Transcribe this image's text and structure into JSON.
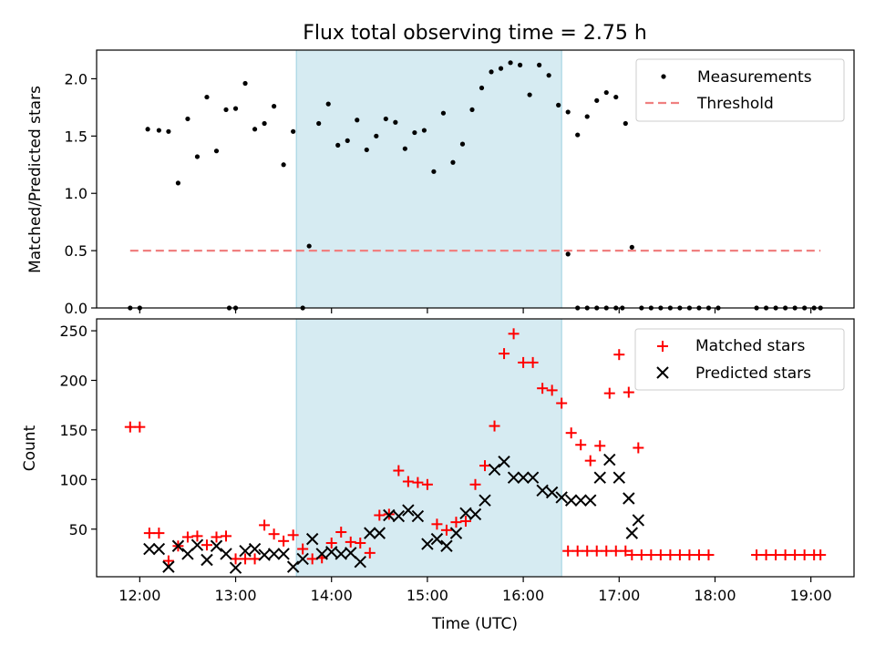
{
  "chart_data": [
    {
      "type": "scatter",
      "title": "Flux total observing time = 2.75 h",
      "xlabel": "",
      "ylabel": "Matched/Predicted stars",
      "xlim": [
        "11:33",
        "19:27"
      ],
      "ylim": [
        0,
        2.25
      ],
      "yticks": [
        "0.0",
        "0.5",
        "1.0",
        "1.5",
        "2.0"
      ],
      "grid": false,
      "legend_position": "top-right",
      "shaded_interval": {
        "start": "13:38",
        "end": "16:24",
        "color": "#add8e6"
      },
      "threshold": {
        "label": "Threshold",
        "value": 0.5,
        "x_start": "11:54",
        "x_end": "19:06",
        "color": "#f08080"
      },
      "series": [
        {
          "name": "Measurements",
          "marker": "dot",
          "color": "#000000",
          "points": [
            [
              "11:54",
              0
            ],
            [
              "12:00",
              0
            ],
            [
              "12:05",
              1.56
            ],
            [
              "12:12",
              1.55
            ],
            [
              "12:18",
              1.54
            ],
            [
              "12:24",
              1.09
            ],
            [
              "12:30",
              1.65
            ],
            [
              "12:36",
              1.32
            ],
            [
              "12:42",
              1.84
            ],
            [
              "12:48",
              1.37
            ],
            [
              "12:54",
              1.73
            ],
            [
              "13:00",
              1.74
            ],
            [
              "12:56",
              0
            ],
            [
              "13:00",
              0
            ],
            [
              "13:06",
              1.96
            ],
            [
              "13:12",
              1.56
            ],
            [
              "13:18",
              1.61
            ],
            [
              "13:24",
              1.76
            ],
            [
              "13:30",
              1.25
            ],
            [
              "13:36",
              1.54
            ],
            [
              "13:42",
              0
            ],
            [
              "13:46",
              0.54
            ],
            [
              "13:52",
              1.61
            ],
            [
              "13:58",
              1.78
            ],
            [
              "14:04",
              1.42
            ],
            [
              "14:10",
              1.46
            ],
            [
              "14:16",
              1.64
            ],
            [
              "14:22",
              1.38
            ],
            [
              "14:28",
              1.5
            ],
            [
              "14:34",
              1.65
            ],
            [
              "14:40",
              1.62
            ],
            [
              "14:46",
              1.39
            ],
            [
              "14:52",
              1.53
            ],
            [
              "14:58",
              1.55
            ],
            [
              "15:04",
              1.19
            ],
            [
              "15:10",
              1.7
            ],
            [
              "15:16",
              1.27
            ],
            [
              "15:22",
              1.43
            ],
            [
              "15:28",
              1.73
            ],
            [
              "15:34",
              1.92
            ],
            [
              "15:40",
              2.06
            ],
            [
              "15:46",
              2.09
            ],
            [
              "15:52",
              2.14
            ],
            [
              "15:58",
              2.12
            ],
            [
              "16:04",
              1.86
            ],
            [
              "16:10",
              2.12
            ],
            [
              "16:16",
              2.03
            ],
            [
              "16:22",
              1.77
            ],
            [
              "16:28",
              1.71
            ],
            [
              "16:34",
              1.51
            ],
            [
              "16:40",
              1.67
            ],
            [
              "16:46",
              1.81
            ],
            [
              "16:52",
              1.88
            ],
            [
              "16:58",
              1.84
            ],
            [
              "17:04",
              1.61
            ],
            [
              "16:28",
              0.47
            ],
            [
              "16:34",
              0
            ],
            [
              "16:40",
              0
            ],
            [
              "16:46",
              0
            ],
            [
              "16:52",
              0
            ],
            [
              "16:58",
              0
            ],
            [
              "17:02",
              0
            ],
            [
              "17:08",
              0.53
            ],
            [
              "17:14",
              0
            ],
            [
              "17:20",
              0
            ],
            [
              "17:26",
              0
            ],
            [
              "17:32",
              0
            ],
            [
              "17:38",
              0
            ],
            [
              "17:44",
              0
            ],
            [
              "17:50",
              0
            ],
            [
              "17:56",
              0
            ],
            [
              "18:02",
              0
            ],
            [
              "18:26",
              0
            ],
            [
              "18:32",
              0
            ],
            [
              "18:38",
              0
            ],
            [
              "18:44",
              0
            ],
            [
              "18:50",
              0
            ],
            [
              "18:56",
              0
            ],
            [
              "19:02",
              0
            ],
            [
              "19:06",
              0
            ]
          ]
        }
      ]
    },
    {
      "type": "scatter",
      "title": "",
      "xlabel": "Time (UTC)",
      "ylabel": "Count",
      "xlim": [
        "11:33",
        "19:27"
      ],
      "ylim": [
        2,
        262
      ],
      "yticks": [
        "50",
        "100",
        "150",
        "200",
        "250"
      ],
      "xticks": [
        "12:00",
        "13:00",
        "14:00",
        "15:00",
        "16:00",
        "17:00",
        "18:00",
        "19:00"
      ],
      "grid": false,
      "legend_position": "top-right",
      "shaded_interval": {
        "start": "13:38",
        "end": "16:24",
        "color": "#add8e6"
      },
      "series": [
        {
          "name": "Matched stars",
          "marker": "plus",
          "color": "#ff0000",
          "points": [
            [
              "11:54",
              153
            ],
            [
              "12:00",
              153
            ],
            [
              "12:06",
              46
            ],
            [
              "12:12",
              46
            ],
            [
              "12:18",
              18
            ],
            [
              "12:24",
              33
            ],
            [
              "12:30",
              42
            ],
            [
              "12:36",
              43
            ],
            [
              "12:42",
              34
            ],
            [
              "12:48",
              42
            ],
            [
              "12:54",
              43
            ],
            [
              "13:00",
              20
            ],
            [
              "13:06",
              20
            ],
            [
              "13:12",
              20
            ],
            [
              "13:18",
              54
            ],
            [
              "13:24",
              45
            ],
            [
              "13:30",
              38
            ],
            [
              "13:36",
              44
            ],
            [
              "13:42",
              30
            ],
            [
              "13:48",
              20
            ],
            [
              "13:54",
              21
            ],
            [
              "14:00",
              36
            ],
            [
              "14:06",
              47
            ],
            [
              "14:12",
              37
            ],
            [
              "14:18",
              36
            ],
            [
              "14:24",
              26
            ],
            [
              "14:30",
              64
            ],
            [
              "14:36",
              65
            ],
            [
              "14:42",
              109
            ],
            [
              "14:48",
              98
            ],
            [
              "14:54",
              97
            ],
            [
              "15:00",
              95
            ],
            [
              "15:06",
              55
            ],
            [
              "15:12",
              49
            ],
            [
              "15:18",
              57
            ],
            [
              "15:24",
              58
            ],
            [
              "15:30",
              95
            ],
            [
              "15:36",
              114
            ],
            [
              "15:42",
              154
            ],
            [
              "15:48",
              227
            ],
            [
              "15:54",
              247
            ],
            [
              "16:00",
              218
            ],
            [
              "16:06",
              218
            ],
            [
              "16:12",
              192
            ],
            [
              "16:18",
              190
            ],
            [
              "16:24",
              177
            ],
            [
              "16:30",
              147
            ],
            [
              "16:36",
              135
            ],
            [
              "16:42",
              119
            ],
            [
              "16:48",
              134
            ],
            [
              "16:54",
              187
            ],
            [
              "17:00",
              226
            ],
            [
              "17:06",
              188
            ],
            [
              "17:12",
              132
            ],
            [
              "16:28",
              28
            ],
            [
              "16:34",
              28
            ],
            [
              "16:40",
              28
            ],
            [
              "16:46",
              28
            ],
            [
              "16:52",
              28
            ],
            [
              "16:58",
              28
            ],
            [
              "17:04",
              28
            ],
            [
              "17:08",
              24
            ],
            [
              "17:14",
              24
            ],
            [
              "17:20",
              24
            ],
            [
              "17:26",
              24
            ],
            [
              "17:32",
              24
            ],
            [
              "17:38",
              24
            ],
            [
              "17:44",
              24
            ],
            [
              "17:50",
              24
            ],
            [
              "17:56",
              24
            ],
            [
              "18:26",
              24
            ],
            [
              "18:32",
              24
            ],
            [
              "18:38",
              24
            ],
            [
              "18:44",
              24
            ],
            [
              "18:50",
              24
            ],
            [
              "18:56",
              24
            ],
            [
              "19:02",
              24
            ],
            [
              "19:06",
              24
            ]
          ]
        },
        {
          "name": "Predicted stars",
          "marker": "x",
          "color": "#000000",
          "points": [
            [
              "12:06",
              30
            ],
            [
              "12:12",
              30
            ],
            [
              "12:18",
              12
            ],
            [
              "12:24",
              33
            ],
            [
              "12:30",
              25
            ],
            [
              "12:36",
              34
            ],
            [
              "12:42",
              19
            ],
            [
              "12:48",
              33
            ],
            [
              "12:54",
              25
            ],
            [
              "13:00",
              11
            ],
            [
              "13:06",
              28
            ],
            [
              "13:12",
              30
            ],
            [
              "13:18",
              24
            ],
            [
              "13:24",
              25
            ],
            [
              "13:30",
              25
            ],
            [
              "13:36",
              12
            ],
            [
              "13:42",
              20
            ],
            [
              "13:48",
              40
            ],
            [
              "13:54",
              25
            ],
            [
              "14:00",
              27
            ],
            [
              "14:06",
              25
            ],
            [
              "14:12",
              26
            ],
            [
              "14:18",
              17
            ],
            [
              "14:24",
              46
            ],
            [
              "14:30",
              46
            ],
            [
              "14:36",
              64
            ],
            [
              "14:42",
              63
            ],
            [
              "14:48",
              69
            ],
            [
              "14:54",
              63
            ],
            [
              "15:00",
              35
            ],
            [
              "15:06",
              40
            ],
            [
              "15:12",
              33
            ],
            [
              "15:18",
              46
            ],
            [
              "15:24",
              66
            ],
            [
              "15:30",
              65
            ],
            [
              "15:36",
              79
            ],
            [
              "15:42",
              110
            ],
            [
              "15:48",
              118
            ],
            [
              "15:54",
              102
            ],
            [
              "16:00",
              102
            ],
            [
              "16:06",
              102
            ],
            [
              "16:12",
              89
            ],
            [
              "16:18",
              87
            ],
            [
              "16:24",
              82
            ],
            [
              "16:30",
              79
            ],
            [
              "16:36",
              79
            ],
            [
              "16:42",
              79
            ],
            [
              "16:48",
              102
            ],
            [
              "16:54",
              120
            ],
            [
              "17:00",
              102
            ],
            [
              "17:06",
              81
            ],
            [
              "17:12",
              59
            ],
            [
              "17:08",
              46
            ]
          ]
        }
      ]
    }
  ]
}
